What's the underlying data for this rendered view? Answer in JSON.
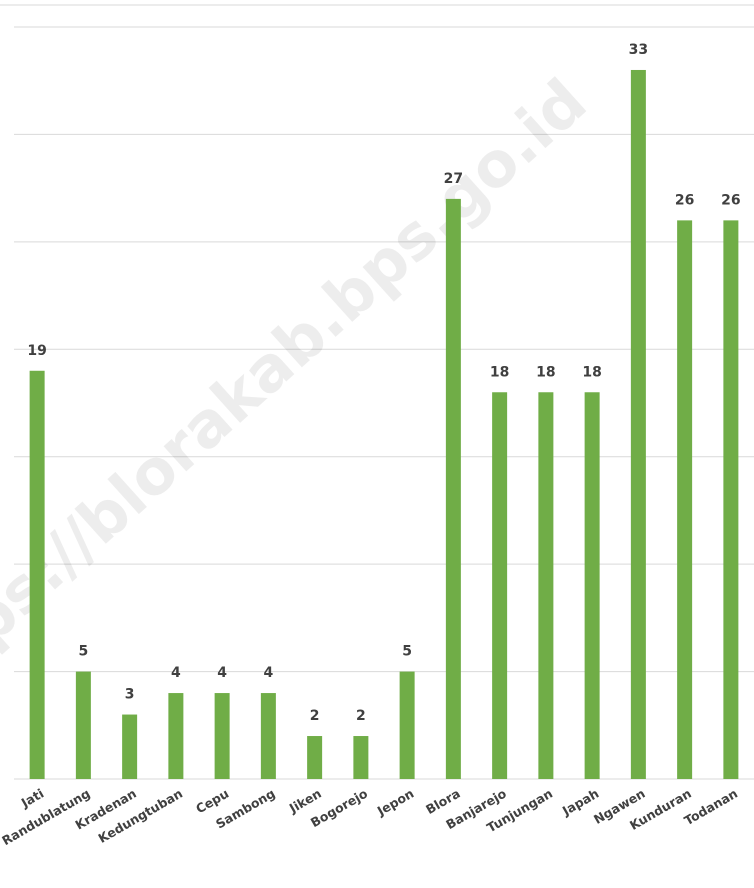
{
  "chart_data": {
    "type": "bar",
    "watermark": "https://blorakab.bps.go.id",
    "categories": [
      "Jati",
      "Randublatung",
      "Kradenan",
      "Kedungtuban",
      "Cepu",
      "Sambong",
      "Jiken",
      "Bogorejo",
      "Jepon",
      "Blora",
      "Banjarejo",
      "Tunjungan",
      "Japah",
      "Ngawen",
      "Kunduran",
      "Todanan"
    ],
    "values": [
      19,
      5,
      3,
      4,
      4,
      4,
      2,
      2,
      5,
      27,
      18,
      18,
      18,
      33,
      26,
      26
    ],
    "color": "#70ad47",
    "ylim": [
      0,
      35
    ],
    "yticks": [
      0,
      5,
      10,
      15,
      20,
      25,
      30,
      35
    ],
    "grid": true
  }
}
